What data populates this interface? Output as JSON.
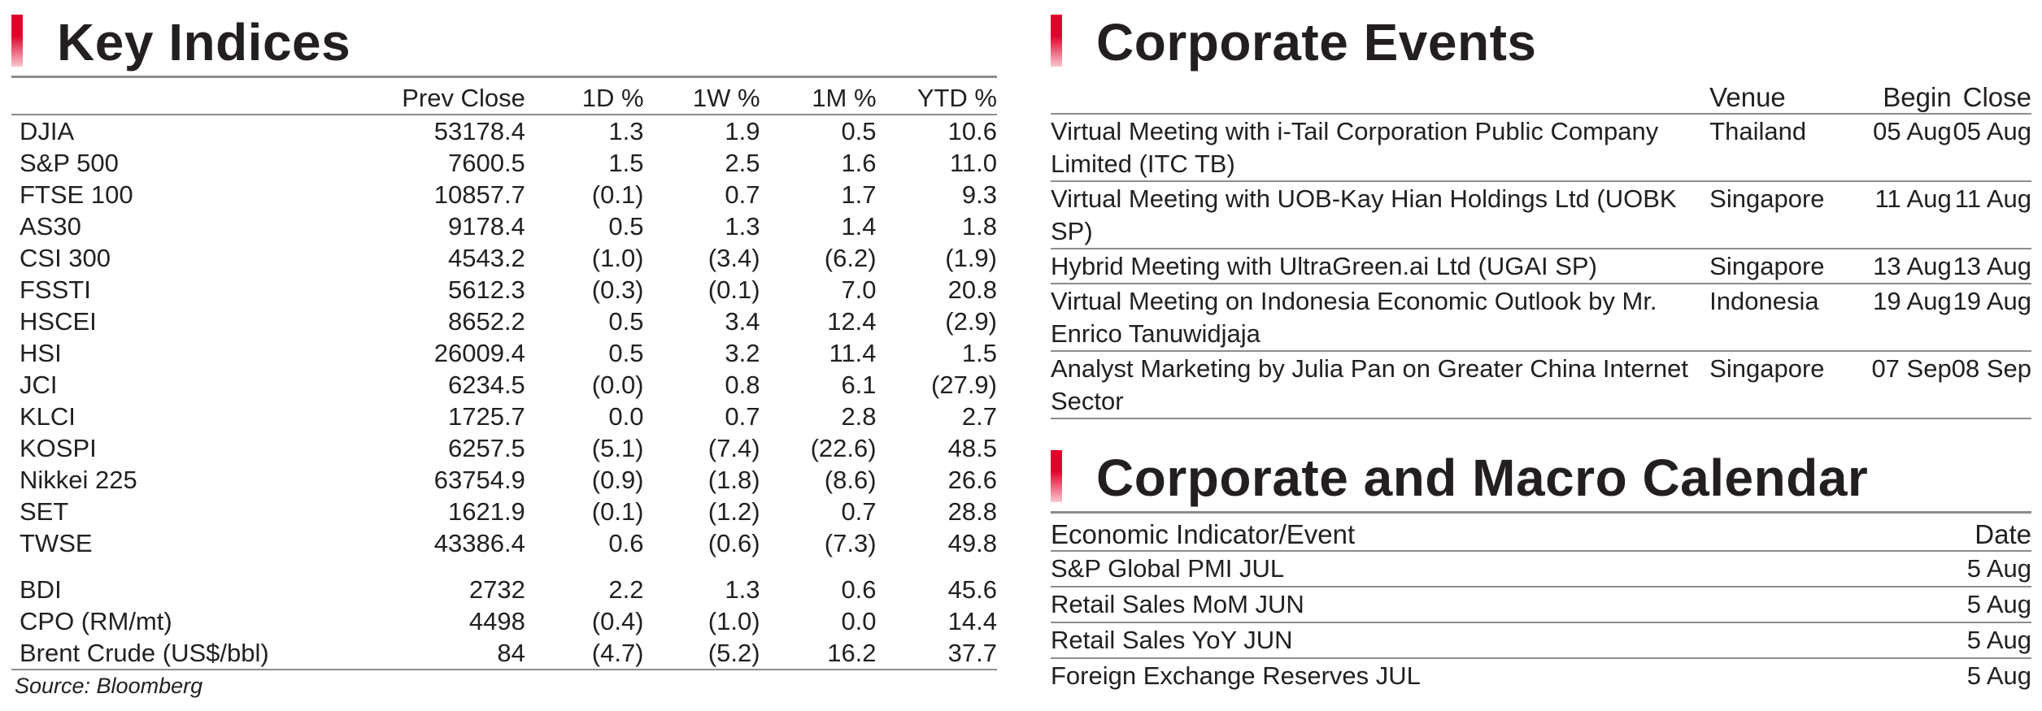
{
  "key_indices": {
    "title": "Key Indices",
    "columns": [
      "Prev Close",
      "1D %",
      "1W %",
      "1M %",
      "YTD %"
    ],
    "rows": [
      {
        "name": "DJIA",
        "prev_close": "53178.4",
        "d1": "1.3",
        "w1": "1.9",
        "m1": "0.5",
        "ytd": "10.6"
      },
      {
        "name": "S&P 500",
        "prev_close": "7600.5",
        "d1": "1.5",
        "w1": "2.5",
        "m1": "1.6",
        "ytd": "11.0"
      },
      {
        "name": "FTSE 100",
        "prev_close": "10857.7",
        "d1": "(0.1)",
        "w1": "0.7",
        "m1": "1.7",
        "ytd": "9.3"
      },
      {
        "name": "AS30",
        "prev_close": "9178.4",
        "d1": "0.5",
        "w1": "1.3",
        "m1": "1.4",
        "ytd": "1.8"
      },
      {
        "name": "CSI 300",
        "prev_close": "4543.2",
        "d1": "(1.0)",
        "w1": "(3.4)",
        "m1": "(6.2)",
        "ytd": "(1.9)"
      },
      {
        "name": "FSSTI",
        "prev_close": "5612.3",
        "d1": "(0.3)",
        "w1": "(0.1)",
        "m1": "7.0",
        "ytd": "20.8"
      },
      {
        "name": "HSCEI",
        "prev_close": "8652.2",
        "d1": "0.5",
        "w1": "3.4",
        "m1": "12.4",
        "ytd": "(2.9)"
      },
      {
        "name": "HSI",
        "prev_close": "26009.4",
        "d1": "0.5",
        "w1": "3.2",
        "m1": "11.4",
        "ytd": "1.5"
      },
      {
        "name": "JCI",
        "prev_close": "6234.5",
        "d1": "(0.0)",
        "w1": "0.8",
        "m1": "6.1",
        "ytd": "(27.9)"
      },
      {
        "name": "KLCI",
        "prev_close": "1725.7",
        "d1": "0.0",
        "w1": "0.7",
        "m1": "2.8",
        "ytd": "2.7"
      },
      {
        "name": "KOSPI",
        "prev_close": "6257.5",
        "d1": "(5.1)",
        "w1": "(7.4)",
        "m1": "(22.6)",
        "ytd": "48.5"
      },
      {
        "name": "Nikkei 225",
        "prev_close": "63754.9",
        "d1": "(0.9)",
        "w1": "(1.8)",
        "m1": "(8.6)",
        "ytd": "26.6"
      },
      {
        "name": "SET",
        "prev_close": "1621.9",
        "d1": "(0.1)",
        "w1": "(1.2)",
        "m1": "0.7",
        "ytd": "28.8"
      },
      {
        "name": "TWSE",
        "prev_close": "43386.4",
        "d1": "0.6",
        "w1": "(0.6)",
        "m1": "(7.3)",
        "ytd": "49.8"
      }
    ],
    "commodities": [
      {
        "name": "BDI",
        "prev_close": "2732",
        "d1": "2.2",
        "w1": "1.3",
        "m1": "0.6",
        "ytd": "45.6"
      },
      {
        "name": "CPO (RM/mt)",
        "prev_close": "4498",
        "d1": "(0.4)",
        "w1": "(1.0)",
        "m1": "0.0",
        "ytd": "14.4"
      },
      {
        "name": "Brent Crude (US$/bbl)",
        "prev_close": "84",
        "d1": "(4.7)",
        "w1": "(5.2)",
        "m1": "16.2",
        "ytd": "37.7"
      }
    ],
    "source": "Source: Bloomberg"
  },
  "corporate_events": {
    "title": "Corporate Events",
    "columns": {
      "event": "",
      "venue": "Venue",
      "begin": "Begin",
      "close": "Close"
    },
    "rows": [
      {
        "event": "Virtual Meeting with i-Tail Corporation Public Company Limited (ITC TB)",
        "venue": "Thailand",
        "begin": "05 Aug",
        "close": "05 Aug"
      },
      {
        "event": "Virtual Meeting with UOB-Kay Hian Holdings Ltd (UOBK SP)",
        "venue": "Singapore",
        "begin": "11 Aug",
        "close": "11 Aug"
      },
      {
        "event": "Hybrid Meeting with UltraGreen.ai Ltd (UGAI SP)",
        "venue": "Singapore",
        "begin": "13 Aug",
        "close": "13 Aug"
      },
      {
        "event": "Virtual Meeting on Indonesia Economic Outlook by Mr. Enrico Tanuwidjaja",
        "venue": "Indonesia",
        "begin": "19 Aug",
        "close": "19 Aug"
      },
      {
        "event": "Analyst Marketing by Julia Pan on Greater China Internet Sector",
        "venue": "Singapore",
        "begin": "07 Sep",
        "close": "08 Sep"
      }
    ]
  },
  "calendar": {
    "title": "Corporate and Macro Calendar",
    "columns": {
      "event": "Economic Indicator/Event",
      "date": "Date"
    },
    "rows": [
      {
        "event": "S&P Global PMI JUL",
        "date": "5 Aug"
      },
      {
        "event": "Retail Sales MoM JUN",
        "date": "5 Aug"
      },
      {
        "event": "Retail Sales YoY JUN",
        "date": "5 Aug"
      },
      {
        "event": "Foreign Exchange Reserves JUL",
        "date": "5 Aug"
      }
    ]
  },
  "colors": {
    "accent": "#e0002a",
    "text": "#231f20",
    "rule": "#8c8c8c"
  }
}
